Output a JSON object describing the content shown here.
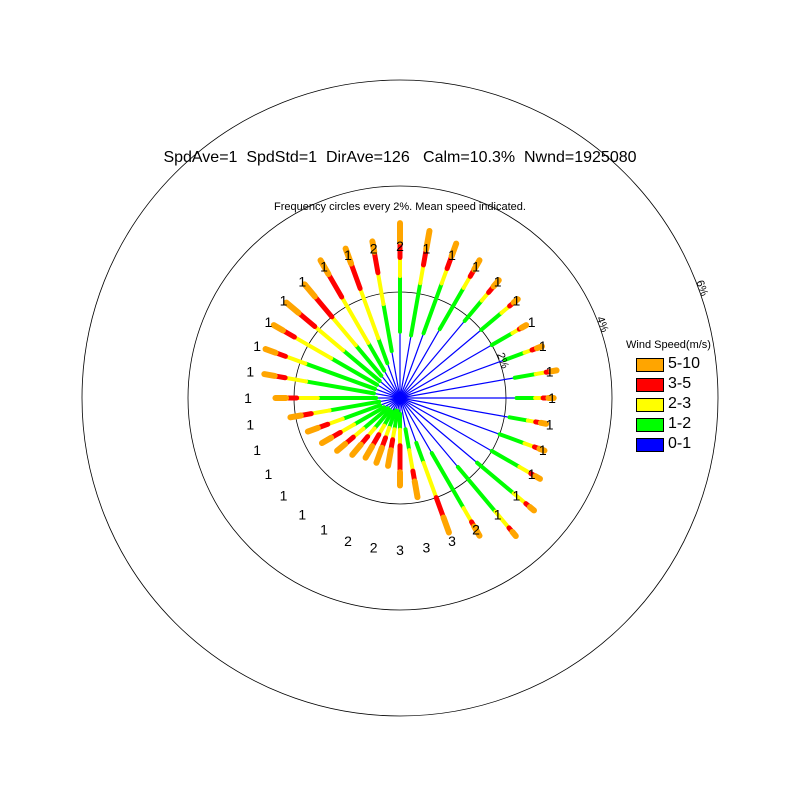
{
  "header": {
    "title": "SpdAve=1  SpdStd=1  DirAve=126   Calm=10.3%  Nwnd=1925080",
    "subtitle": "Frequency circles every 2%. Mean speed indicated."
  },
  "chart_data": {
    "type": "wind-rose",
    "sectors": 36,
    "direction_start_deg": 0,
    "direction_step_deg": 10,
    "ring_labels": [
      "2%",
      "4%",
      "6%"
    ],
    "ring_values": [
      2,
      4,
      6
    ],
    "mean_speed_labels": [
      "2",
      "1",
      "1",
      "1",
      "1",
      "1",
      "1",
      "1",
      "1",
      "1",
      "1",
      "1",
      "1",
      "1",
      "1",
      "2",
      "3",
      "3",
      "3",
      "2",
      "2",
      "1",
      "1",
      "1",
      "1",
      "1",
      "1",
      "1",
      "1",
      "1",
      "1",
      "1",
      "1",
      "1",
      "1",
      "2"
    ],
    "legend": {
      "title": "Wind Speed(m/s)",
      "bins": [
        {
          "label": "5-10",
          "color": "#FFA500"
        },
        {
          "label": "3-5",
          "color": "#FF0000"
        },
        {
          "label": "2-3",
          "color": "#FFFF00"
        },
        {
          "label": "1-2",
          "color": "#00FF00"
        },
        {
          "label": "0-1",
          "color": "#0000FF"
        }
      ]
    },
    "cumulative_frequency_pct": [
      [
        1.25,
        2.3,
        2.65,
        2.95,
        3.3
      ],
      [
        1.2,
        2.2,
        2.55,
        2.85,
        3.2
      ],
      [
        1.3,
        2.3,
        2.6,
        2.85,
        3.1
      ],
      [
        1.5,
        2.4,
        2.65,
        2.8,
        3.0
      ],
      [
        1.9,
        2.4,
        2.6,
        2.75,
        2.9
      ],
      [
        2.0,
        2.5,
        2.7,
        2.8,
        2.9
      ],
      [
        2.0,
        2.45,
        2.6,
        2.65,
        2.75
      ],
      [
        2.1,
        2.5,
        2.65,
        2.75,
        2.85
      ],
      [
        2.2,
        2.6,
        2.8,
        2.9,
        3.0
      ],
      [
        2.2,
        2.55,
        2.7,
        2.8,
        2.9
      ],
      [
        2.1,
        2.45,
        2.6,
        2.7,
        2.8
      ],
      [
        2.0,
        2.5,
        2.7,
        2.8,
        2.9
      ],
      [
        2.0,
        2.6,
        2.85,
        2.95,
        3.05
      ],
      [
        1.9,
        2.8,
        3.1,
        3.2,
        3.3
      ],
      [
        1.7,
        2.8,
        3.2,
        3.3,
        3.4
      ],
      [
        1.2,
        2.4,
        2.7,
        2.8,
        3.0
      ],
      [
        0.9,
        1.3,
        2.0,
        2.4,
        2.7
      ],
      [
        0.6,
        1.0,
        1.4,
        1.6,
        1.9
      ],
      [
        0.3,
        0.6,
        0.9,
        1.4,
        1.65
      ],
      [
        0.25,
        0.6,
        0.8,
        1.0,
        1.3
      ],
      [
        0.25,
        0.6,
        0.8,
        1.0,
        1.3
      ],
      [
        0.3,
        0.6,
        0.8,
        1.05,
        1.3
      ],
      [
        0.3,
        0.75,
        0.95,
        1.15,
        1.4
      ],
      [
        0.3,
        0.9,
        1.15,
        1.35,
        1.55
      ],
      [
        0.35,
        1.0,
        1.3,
        1.5,
        1.7
      ],
      [
        0.4,
        1.15,
        1.45,
        1.65,
        1.85
      ],
      [
        0.4,
        1.35,
        1.7,
        1.9,
        2.1
      ],
      [
        0.45,
        1.55,
        1.95,
        2.15,
        2.35
      ],
      [
        0.5,
        1.8,
        2.2,
        2.4,
        2.6
      ],
      [
        0.5,
        1.9,
        2.3,
        2.5,
        2.7
      ],
      [
        0.5,
        1.5,
        2.3,
        2.55,
        2.75
      ],
      [
        0.5,
        1.4,
        2.1,
        2.5,
        2.8
      ],
      [
        0.55,
        1.3,
        2.0,
        2.5,
        2.8
      ],
      [
        0.6,
        1.2,
        2.2,
        2.7,
        3.0
      ],
      [
        0.7,
        1.2,
        2.2,
        2.7,
        3.0
      ],
      [
        0.9,
        1.8,
        2.4,
        2.8,
        3.0
      ]
    ]
  }
}
